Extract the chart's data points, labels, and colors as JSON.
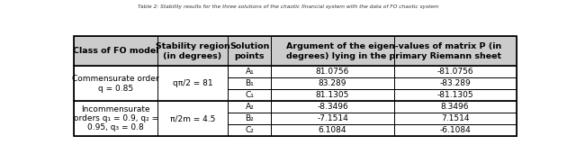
{
  "title": "Table 2: Stability results for the three solutions of the chaotic financial system with the data of FO chaotic system",
  "header_col0": "Class of FO model",
  "header_col1": "Stability region\n(in degrees)",
  "header_col2": "Solution\npoints",
  "header_col34": "Argument of the eigen-values of matrix P (in\ndegrees) lying in the primary Riemann sheet",
  "rows": [
    {
      "point": "A₁",
      "val1": "81.0756",
      "val2": "-81.0756",
      "group": 0
    },
    {
      "point": "B₁",
      "val1": "83.289",
      "val2": "-83.289",
      "group": 0
    },
    {
      "point": "C₁",
      "val1": "81.1305",
      "val2": "-81.1305",
      "group": 0
    },
    {
      "point": "A₂",
      "val1": "-8.3496",
      "val2": "8.3496",
      "group": 1
    },
    {
      "point": "B₂",
      "val1": "-7.1514",
      "val2": "7.1514",
      "group": 1
    },
    {
      "point": "C₂",
      "val1": "6.1084",
      "val2": "-6.1084",
      "group": 1
    }
  ],
  "group0_class": "Commensurate order\nq = 0.85",
  "group0_stability": "qπ/2 = 81",
  "group1_class": "Incommensurate\norders q₁ = 0.9, q₂ =\n0.95, q₃ = 0.8",
  "group1_stability": "π/2m = 4.5",
  "bg_color": "#ffffff",
  "header_bg": "#cccccc",
  "data_fs": 6.5,
  "header_fs": 6.8,
  "title_fs": 4.2,
  "col_props": [
    0.188,
    0.16,
    0.098,
    0.277,
    0.277
  ]
}
